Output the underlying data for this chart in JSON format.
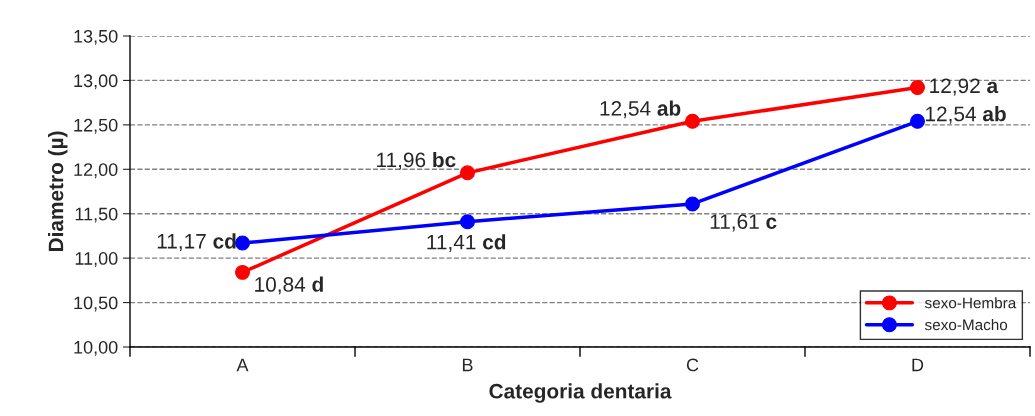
{
  "chart_data": {
    "type": "line",
    "xlabel": "Categoria dentaria",
    "ylabel": "Diametro (µ)",
    "categories": [
      "A",
      "B",
      "C",
      "D"
    ],
    "series": [
      {
        "name": "sexo-Hembra",
        "color": "#ff0000",
        "values": [
          10.84,
          11.96,
          12.54,
          12.92
        ],
        "value_labels": [
          "10,84 d",
          "11,96 bc",
          "12,54 ab",
          "12,92 a"
        ]
      },
      {
        "name": "sexo-Macho",
        "color": "#0000ff",
        "values": [
          11.17,
          11.41,
          11.61,
          12.54
        ],
        "value_labels": [
          "11,17 cd",
          "11,41 cd",
          "11,61 c",
          "12,54 ab"
        ]
      }
    ],
    "ylim": [
      10,
      13.5
    ],
    "yticks": [
      {
        "value": 10,
        "label": "10,00"
      },
      {
        "value": 10.5,
        "label": "10,50"
      },
      {
        "value": 11,
        "label": "11,00"
      },
      {
        "value": 11.5,
        "label": "11,50"
      },
      {
        "value": 12,
        "label": "12,00"
      },
      {
        "value": 12.5,
        "label": "12,50"
      },
      {
        "value": 13,
        "label": "13,00"
      },
      {
        "value": 13.5,
        "label": "13,50"
      }
    ],
    "grid": "y",
    "legend": "bottom right",
    "marker": "circle",
    "line_style": "solid"
  }
}
